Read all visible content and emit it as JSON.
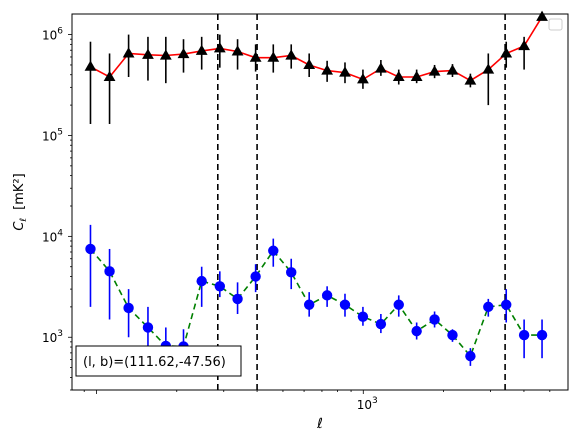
{
  "chart_data": {
    "type": "scatter",
    "title": "",
    "xlabel": "ℓ",
    "ylabel": "C",
    "ylabel_sub": "ℓ",
    "ylabel_unit": "[mK²]",
    "x_scale": "log",
    "y_scale": "log",
    "xlim": [
      81,
      5850
    ],
    "ylim": [
      300,
      1600000
    ],
    "x_tick_labels": [
      {
        "base": "10",
        "exp": "3",
        "value": 1000
      }
    ],
    "y_tick_labels": [
      {
        "base": "10",
        "exp": "3",
        "value": 1000
      },
      {
        "base": "10",
        "exp": "4",
        "value": 10000
      },
      {
        "base": "10",
        "exp": "5",
        "value": 100000
      },
      {
        "base": "10",
        "exp": "6",
        "value": 1000000
      }
    ],
    "annotation": "(l, b)=(111.62,-47.56)",
    "legend": "top-right, empty",
    "vertical_lines_x": [
      285,
      400,
      3400
    ],
    "series": [
      {
        "color": "#000000",
        "line_color": "#ff0000",
        "line_style": "solid",
        "marker": "triangle",
        "x": [
          95,
          112,
          132,
          156,
          182,
          212,
          248,
          290,
          338,
          395,
          460,
          537,
          627,
          732,
          854,
          997,
          1164,
          1358,
          1585,
          1850,
          2159,
          2520,
          2941,
          3433,
          4006,
          4676
        ],
        "y": [
          480000,
          380000,
          650000,
          630000,
          620000,
          640000,
          690000,
          730000,
          680000,
          590000,
          590000,
          620000,
          500000,
          440000,
          420000,
          360000,
          460000,
          380000,
          380000,
          430000,
          440000,
          350000,
          450000,
          650000,
          770000,
          1500000
        ],
        "err_low": [
          130000,
          130000,
          380000,
          350000,
          330000,
          420000,
          450000,
          470000,
          450000,
          430000,
          420000,
          460000,
          380000,
          340000,
          330000,
          290000,
          390000,
          320000,
          330000,
          370000,
          380000,
          300000,
          200000,
          470000,
          450000,
          1500000
        ],
        "err_high": [
          850000,
          650000,
          1000000,
          950000,
          950000,
          900000,
          950000,
          1000000,
          900000,
          800000,
          800000,
          800000,
          650000,
          550000,
          530000,
          450000,
          560000,
          450000,
          450000,
          500000,
          510000,
          410000,
          650000,
          850000,
          950000,
          1500000
        ]
      },
      {
        "color": "#0000ff",
        "line_color": "#008000",
        "line_style": "dashed",
        "marker": "circle",
        "x": [
          95,
          112,
          132,
          156,
          182,
          212,
          248,
          290,
          338,
          395,
          460,
          537,
          627,
          732,
          854,
          997,
          1164,
          1358,
          1585,
          1850,
          2159,
          2520,
          2941,
          3433,
          4006,
          4676
        ],
        "y": [
          7500,
          4500,
          1950,
          1250,
          820,
          810,
          3600,
          3200,
          2400,
          4000,
          7200,
          4400,
          2100,
          2600,
          2100,
          1600,
          1350,
          2100,
          1150,
          1500,
          1050,
          650,
          2000,
          2100,
          1050,
          1050
        ],
        "err_low": [
          2000,
          1500,
          1000,
          500,
          500,
          500,
          2000,
          2500,
          1700,
          2800,
          5000,
          3000,
          1600,
          2000,
          1600,
          1300,
          1100,
          1600,
          950,
          1250,
          900,
          520,
          1600,
          1400,
          620,
          620
        ],
        "err_high": [
          13000,
          7500,
          3000,
          2000,
          1250,
          1200,
          5000,
          4500,
          3500,
          5300,
          9500,
          6000,
          2800,
          3200,
          2700,
          2000,
          1700,
          2600,
          1400,
          1800,
          1200,
          780,
          2400,
          3000,
          1500,
          1500
        ]
      }
    ]
  }
}
